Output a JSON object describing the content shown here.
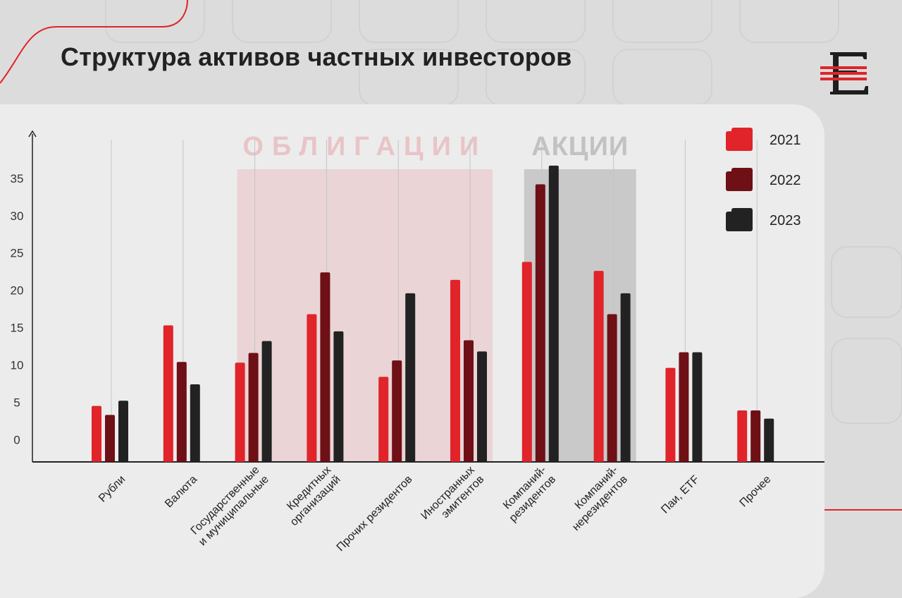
{
  "header": {
    "title": "Структура активов частных инвесторов"
  },
  "logo": {
    "icon": "e-logo-icon"
  },
  "colors": {
    "y2021": "#e0242a",
    "y2022": "#6e1016",
    "y2023": "#222222",
    "bonds_band": "#ead4d6",
    "stocks_band": "#c9c9c9",
    "accent": "#e0242a"
  },
  "chart_data": {
    "type": "bar",
    "title": "Структура активов частных инвесторов",
    "xlabel": "",
    "ylabel": "",
    "ylim": [
      -3,
      40
    ],
    "yticks": [
      0,
      5,
      10,
      15,
      20,
      25,
      30,
      35
    ],
    "grid": "vertical lines per category",
    "legend": "top-right",
    "categories": [
      "Рубли",
      "Валюта",
      "Государственные и муниципальные",
      "Кредитных организаций",
      "Прочих резидентов",
      "Иностранных эмитентов",
      "Компаний-резидентов",
      "Компаний-нерезидентов",
      "Паи, ETF",
      "Прочее"
    ],
    "category_lines": [
      [
        "Рубли"
      ],
      [
        "Валюта"
      ],
      [
        "Государственные",
        "и муниципальные"
      ],
      [
        "Кредитных",
        "организаций"
      ],
      [
        "Прочих резидентов"
      ],
      [
        "Иностранных",
        "эмитентов"
      ],
      [
        "Компаний-",
        "резидентов"
      ],
      [
        "Компаний-",
        "нерезидентов"
      ],
      [
        "Паи, ETF"
      ],
      [
        "Прочее"
      ]
    ],
    "series": [
      {
        "name": "2021",
        "values": [
          4.5,
          15.3,
          10.3,
          16.8,
          8.4,
          21.4,
          23.8,
          22.6,
          9.6,
          3.9
        ]
      },
      {
        "name": "2022",
        "values": [
          3.3,
          10.4,
          11.6,
          22.4,
          10.6,
          13.3,
          34.2,
          16.8,
          11.7,
          3.9
        ]
      },
      {
        "name": "2023",
        "values": [
          5.2,
          7.4,
          13.2,
          14.5,
          19.6,
          11.8,
          36.7,
          19.6,
          11.7,
          2.8
        ]
      }
    ],
    "groups": [
      {
        "label": "ОБЛИГАЦИИ",
        "from": 2,
        "to": 5
      },
      {
        "label": "АКЦИИ",
        "from": 6,
        "to": 7
      }
    ]
  }
}
